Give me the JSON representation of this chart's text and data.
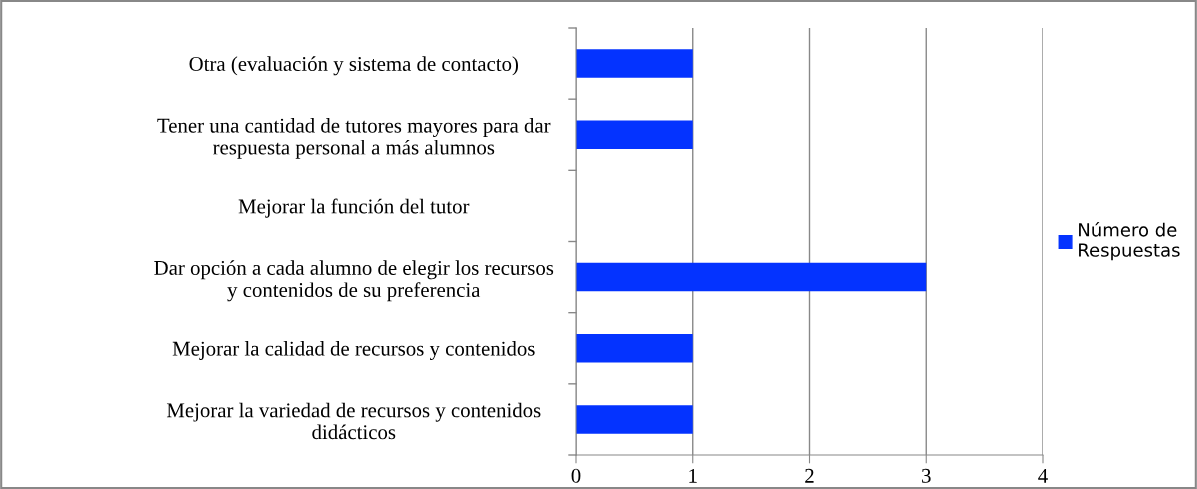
{
  "chart_data": {
    "type": "bar",
    "orientation": "horizontal",
    "categories": [
      "Otra (evaluación y sistema de contacto)",
      "Tener una cantidad de tutores mayores para dar\nrespuesta personal a más alumnos",
      "Mejorar la función del tutor",
      "Dar opción a cada alumno de elegir los recursos\ny contenidos de su preferencia",
      "Mejorar la calidad de recursos y contenidos",
      "Mejorar la variedad de recursos y contenidos\ndidácticos"
    ],
    "series": [
      {
        "name": "Número de\nRespuestas",
        "color": "#0433ff",
        "values": [
          1,
          1,
          0,
          3,
          1,
          1
        ]
      }
    ],
    "xlim": [
      0,
      4
    ],
    "xticks": [
      0,
      1,
      2,
      3,
      4
    ],
    "grid": "x",
    "legend": "right"
  }
}
